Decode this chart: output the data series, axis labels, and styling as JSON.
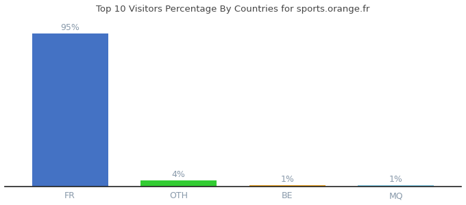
{
  "categories": [
    "FR",
    "OTH",
    "BE",
    "MQ"
  ],
  "values": [
    95,
    4,
    1,
    1
  ],
  "bar_colors": [
    "#4472c4",
    "#33cc33",
    "#e8a020",
    "#7ec8e3"
  ],
  "labels": [
    "95%",
    "4%",
    "1%",
    "1%"
  ],
  "title": "Top 10 Visitors Percentage By Countries for sports.orange.fr",
  "ylim": [
    0,
    105
  ],
  "background_color": "#ffffff",
  "label_fontsize": 9,
  "tick_fontsize": 9,
  "title_fontsize": 9.5,
  "bar_width": 0.7,
  "label_color": "#8899aa"
}
